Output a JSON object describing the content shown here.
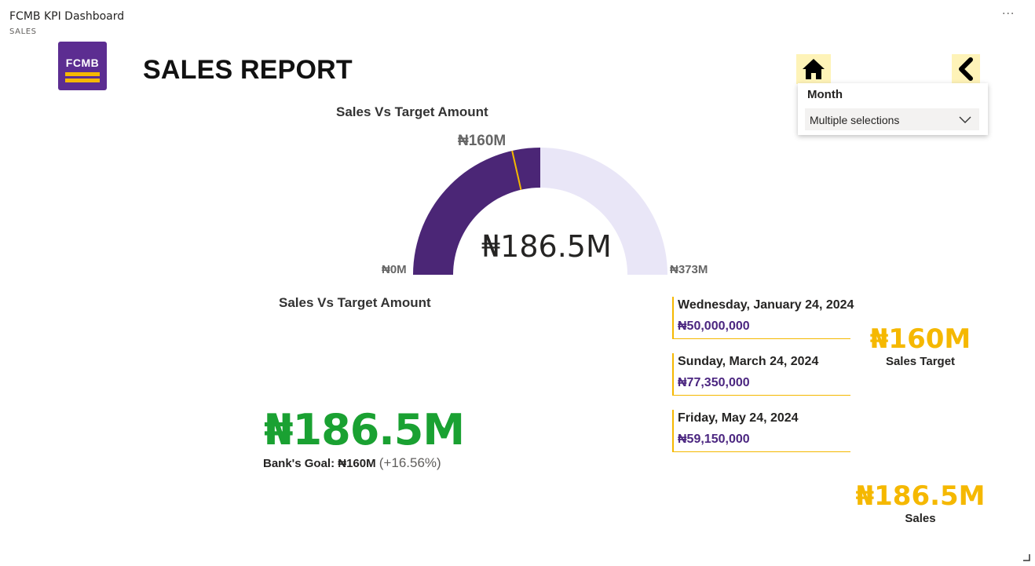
{
  "app": {
    "title": "FCMB KPI Dashboard",
    "subtitle": "SALES",
    "more_label": "···"
  },
  "logo": {
    "text": "FCMB",
    "brand_color": "#5c2d91",
    "accent_color": "#f5b800"
  },
  "report": {
    "title": "SALES REPORT"
  },
  "nav": {
    "home_icon": "home-icon",
    "back_icon": "back-arrow-icon",
    "button_bg": "#fef3b8"
  },
  "slicer": {
    "title": "Month",
    "value": "Multiple selections"
  },
  "gauge": {
    "title": "Sales Vs Target Amount",
    "value_label": "₦186.5M",
    "target_label": "₦160M",
    "min_label": "₦0M",
    "max_label": "₦373M",
    "value": 186.5,
    "target": 160,
    "min": 0,
    "max": 373,
    "fill_color": "#4b2676",
    "track_color": "#e9e6f7",
    "target_color": "#f5b800"
  },
  "kpi": {
    "title": "Sales Vs Target Amount",
    "value": "₦186.5M",
    "goal_label": "Bank's Goal: ₦160M",
    "goal_pct": "(+16.56%)",
    "status_color": "#1aa132"
  },
  "cards": [
    {
      "date": "Wednesday, January 24, 2024",
      "amount": "₦50,000,000"
    },
    {
      "date": "Sunday, March 24, 2024",
      "amount": "₦77,350,000"
    },
    {
      "date": "Friday, May 24, 2024",
      "amount": "₦59,150,000"
    }
  ],
  "summary": {
    "target_value": "₦160M",
    "target_label": "Sales Target",
    "sales_value": "₦186.5M",
    "sales_label": "Sales"
  }
}
